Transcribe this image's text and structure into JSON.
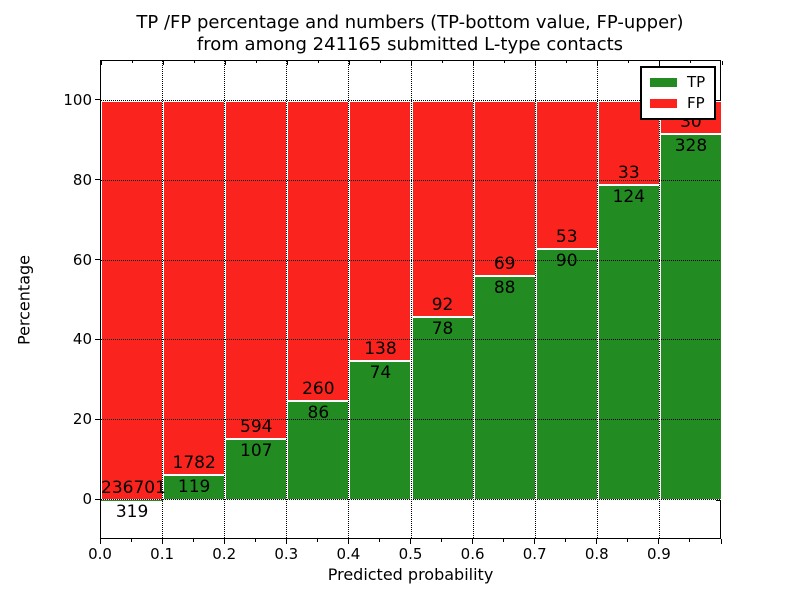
{
  "title": {
    "line1": "TP /FP percentage and numbers (TP-bottom value, FP-upper)",
    "line2": "from among 241165 submitted L-type contacts"
  },
  "legend": {
    "position": "upper right",
    "items": [
      {
        "label": "TP",
        "color": "#228b22"
      },
      {
        "label": "FP",
        "color": "#fb231d"
      }
    ]
  },
  "chart_data": {
    "type": "bar",
    "stacked": true,
    "normalized": "each bin stacks to 100%",
    "title": "TP /FP percentage and numbers (TP-bottom value, FP-upper) from among 241165 submitted L-type contacts",
    "xlabel": "Predicted probability",
    "ylabel": "Percentage",
    "total_contacts": 241165,
    "xlim": [
      0.0,
      1.0
    ],
    "ylim": [
      -10,
      110
    ],
    "grid": true,
    "grid_style": "dotted-black-above-bars",
    "bin_edges": [
      0.0,
      0.1,
      0.2,
      0.3,
      0.4,
      0.5,
      0.6,
      0.7,
      0.8,
      0.9,
      1.0
    ],
    "xtick_labels": [
      "0.0",
      "0.1",
      "0.2",
      "0.3",
      "0.4",
      "0.5",
      "0.6",
      "0.7",
      "0.8",
      "0.9"
    ],
    "ytick_values": [
      0,
      20,
      40,
      60,
      80,
      100
    ],
    "ytick_labels": [
      "0",
      "20",
      "40",
      "60",
      "80",
      "100"
    ],
    "series": [
      {
        "name": "TP",
        "color": "#228b22",
        "counts": [
          319,
          119,
          107,
          86,
          74,
          78,
          88,
          90,
          124,
          328
        ],
        "percent": [
          0.13,
          6.26,
          15.26,
          24.86,
          34.91,
          45.88,
          56.05,
          62.94,
          78.98,
          91.62
        ]
      },
      {
        "name": "FP",
        "color": "#fb231d",
        "counts": [
          236701,
          1782,
          594,
          260,
          138,
          92,
          69,
          53,
          33,
          30
        ],
        "percent": [
          99.87,
          93.74,
          84.74,
          75.14,
          65.09,
          54.12,
          43.95,
          37.06,
          21.02,
          8.38
        ]
      }
    ]
  }
}
